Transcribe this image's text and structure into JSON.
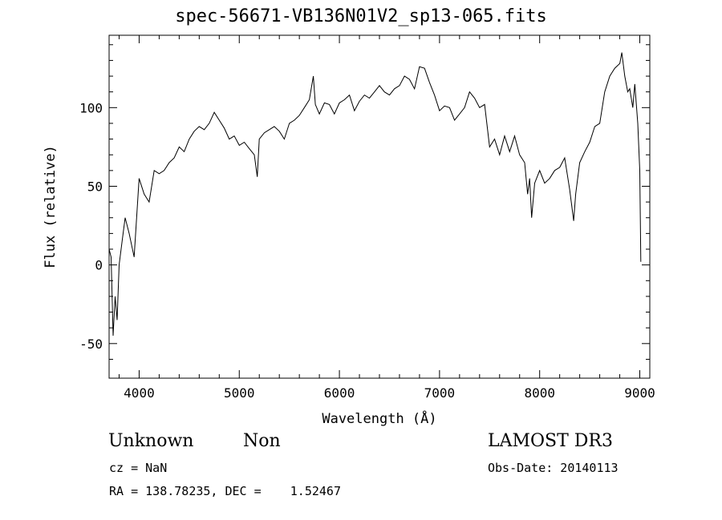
{
  "chart_data": {
    "type": "line",
    "title": "spec-56671-VB136N01V2_sp13-065.fits",
    "xlabel": "Wavelength (Å)",
    "ylabel": "Flux (relative)",
    "xlim": [
      3700,
      9100
    ],
    "ylim": [
      -72,
      146
    ],
    "x_ticks": [
      4000,
      5000,
      6000,
      7000,
      8000,
      9000
    ],
    "y_ticks": [
      -50,
      0,
      50,
      100
    ],
    "x": [
      3700,
      3720,
      3740,
      3760,
      3780,
      3800,
      3830,
      3860,
      3900,
      3950,
      4000,
      4050,
      4100,
      4150,
      4200,
      4250,
      4300,
      4350,
      4400,
      4450,
      4500,
      4550,
      4600,
      4650,
      4700,
      4750,
      4800,
      4850,
      4900,
      4950,
      5000,
      5050,
      5100,
      5150,
      5180,
      5200,
      5250,
      5300,
      5350,
      5400,
      5450,
      5500,
      5550,
      5600,
      5650,
      5700,
      5740,
      5760,
      5800,
      5850,
      5900,
      5950,
      6000,
      6050,
      6100,
      6150,
      6200,
      6250,
      6300,
      6350,
      6400,
      6450,
      6500,
      6550,
      6600,
      6650,
      6700,
      6750,
      6800,
      6850,
      6900,
      6950,
      7000,
      7050,
      7100,
      7150,
      7200,
      7250,
      7300,
      7350,
      7400,
      7450,
      7500,
      7550,
      7600,
      7650,
      7700,
      7750,
      7800,
      7850,
      7880,
      7900,
      7920,
      7950,
      8000,
      8050,
      8100,
      8150,
      8200,
      8250,
      8300,
      8340,
      8360,
      8400,
      8450,
      8500,
      8550,
      8600,
      8650,
      8700,
      8750,
      8800,
      8820,
      8850,
      8880,
      8900,
      8930,
      8950,
      8980,
      9000,
      9010
    ],
    "series": [
      {
        "values": [
          10,
          5,
          -45,
          -20,
          -35,
          0,
          15,
          30,
          20,
          5,
          55,
          45,
          40,
          60,
          58,
          60,
          65,
          68,
          75,
          72,
          80,
          85,
          88,
          86,
          90,
          97,
          92,
          87,
          80,
          82,
          76,
          78,
          74,
          70,
          56,
          80,
          84,
          86,
          88,
          85,
          80,
          90,
          92,
          95,
          100,
          105,
          120,
          102,
          96,
          103,
          102,
          96,
          103,
          105,
          108,
          98,
          104,
          108,
          106,
          110,
          114,
          110,
          108,
          112,
          114,
          120,
          118,
          112,
          126,
          125,
          116,
          108,
          98,
          101,
          100,
          92,
          96,
          100,
          110,
          106,
          100,
          102,
          75,
          80,
          70,
          82,
          72,
          82,
          70,
          65,
          45,
          55,
          30,
          52,
          60,
          52,
          55,
          60,
          62,
          68,
          48,
          28,
          45,
          65,
          72,
          78,
          88,
          90,
          110,
          120,
          125,
          128,
          135,
          120,
          110,
          112,
          100,
          115,
          90,
          60,
          2
        ]
      }
    ]
  },
  "annotations": {
    "object_class": "Unknown",
    "subclass": "Non",
    "survey": "LAMOST DR3",
    "cz": "cz = NaN",
    "obs_date": "Obs-Date: 20140113",
    "coords": "RA = 138.78235, DEC =    1.52467"
  }
}
